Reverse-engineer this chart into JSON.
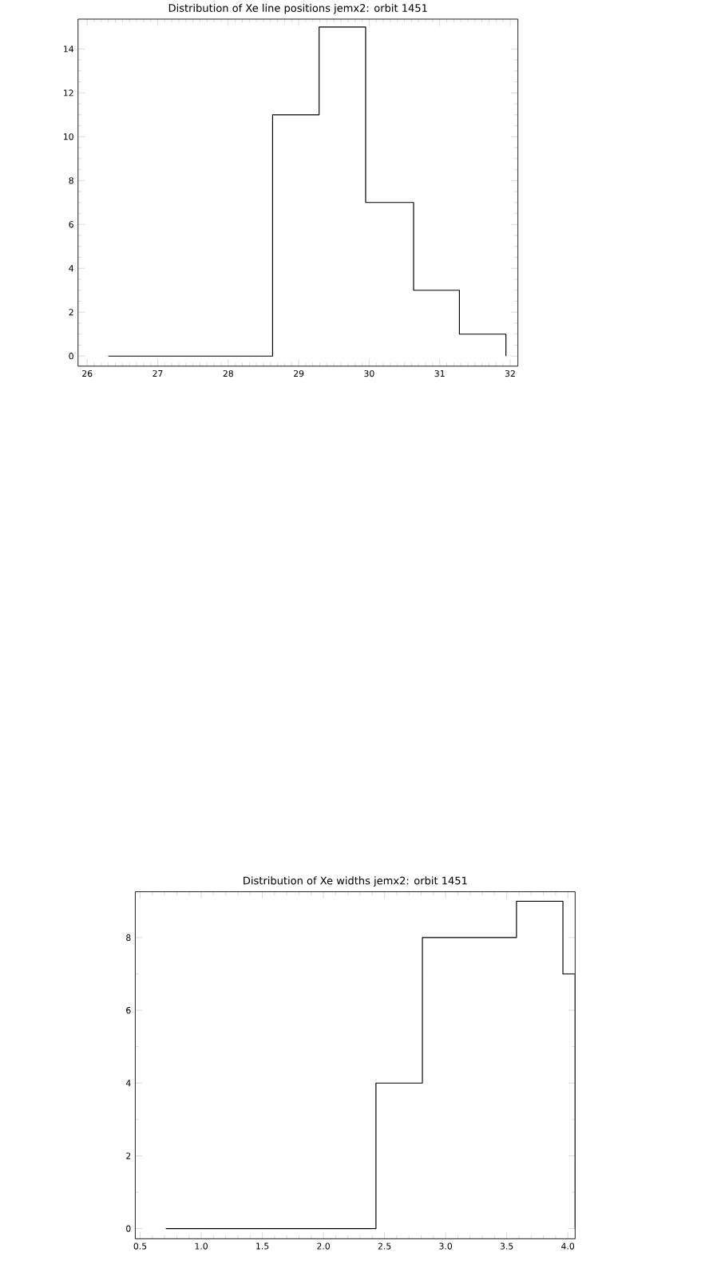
{
  "chart_data": [
    {
      "type": "histogram",
      "title": "Distribution of Xe line positions jemx2: orbit 1451",
      "color": "#000000",
      "bins": [
        26.3,
        28.63,
        29.29,
        29.95,
        30.63,
        31.28,
        31.94
      ],
      "values": [
        0,
        11,
        15,
        7,
        3,
        1
      ],
      "xlim": [
        25.87,
        32.11
      ],
      "ylim": [
        -0.46,
        15.36
      ],
      "xticks": [
        26,
        27,
        28,
        29,
        30,
        31,
        32
      ],
      "yticks": [
        0,
        2,
        4,
        6,
        8,
        10,
        12,
        14
      ]
    },
    {
      "type": "histogram",
      "title": "Distribution of Xe widths jemx2: orbit 1451",
      "color": "#000000",
      "bins": [
        0.71,
        2.43,
        2.81,
        3.58,
        3.96,
        4.06
      ],
      "values": [
        0,
        4,
        8,
        9,
        7
      ],
      "xlim": [
        0.46,
        4.06
      ],
      "ylim": [
        -0.28,
        9.26
      ],
      "xticks": [
        0.5,
        {
          "value": 1.0,
          "label": "1.0"
        },
        1.5,
        {
          "value": 2.0,
          "label": "2.0"
        },
        2.5,
        {
          "value": 3.0,
          "label": "3.0"
        },
        3.5,
        {
          "value": 4.0,
          "label": "4.0"
        }
      ],
      "yticks": [
        0,
        2,
        4,
        6,
        8
      ]
    }
  ]
}
